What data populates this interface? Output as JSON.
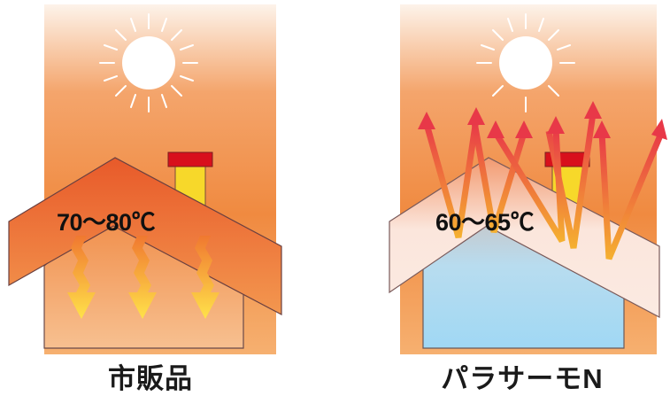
{
  "left_panel": {
    "temperature": "70～80℃",
    "caption": "市販品"
  },
  "right_panel": {
    "temperature": "60～65℃",
    "caption": "パラサーモN"
  },
  "colors": {
    "sky_top": "#fdf3ea",
    "sky_mid": "#f08a40",
    "roof_hot": "#ee6a30",
    "roof_coated": "#fbe6dc",
    "wall_hot": "#f3a45e",
    "wall_cool": "#a8dcf4",
    "chimney_cap": "#d8101c",
    "chimney_body": "#f7d82a",
    "heat_arrow": "#ffe040",
    "reflect_arrow": "#e83848"
  }
}
